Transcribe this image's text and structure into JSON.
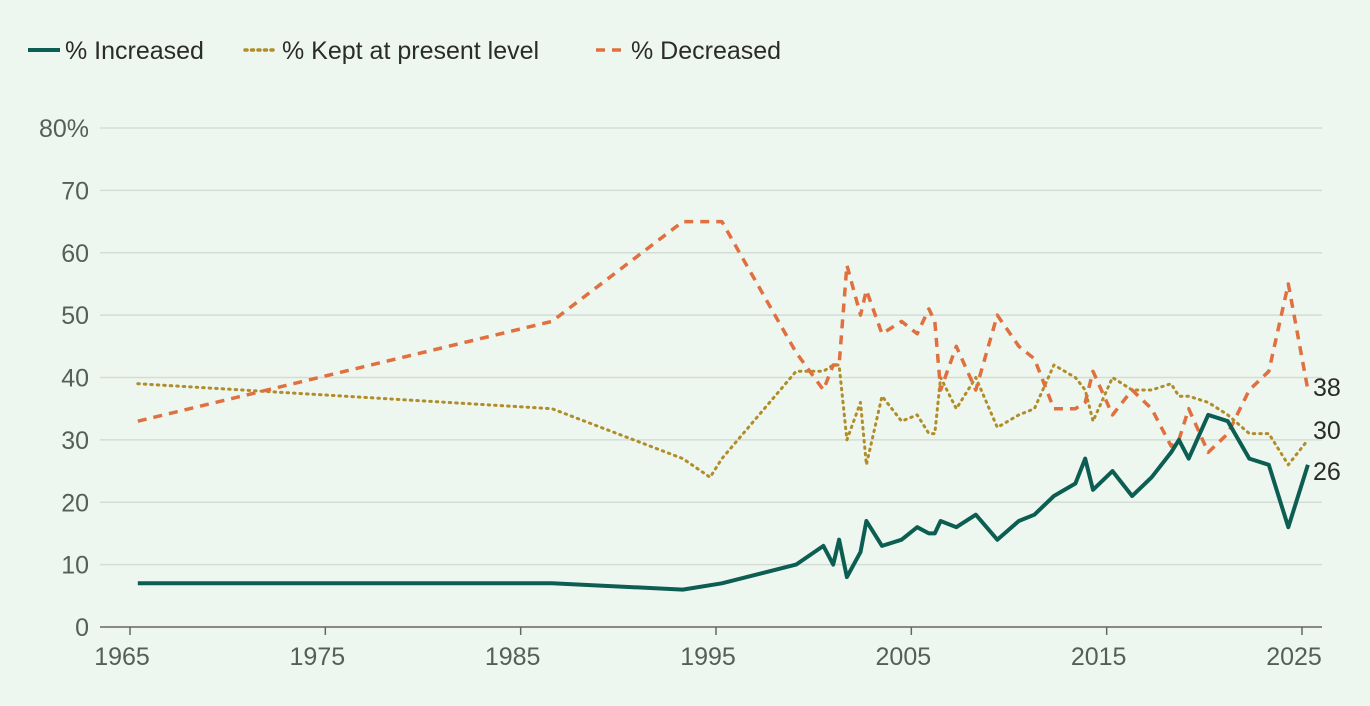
{
  "colors": {
    "background": "#eef7ef",
    "increased": "#0c5e52",
    "kept": "#b08d2a",
    "decreased": "#e0703f"
  },
  "chart_data": {
    "type": "line",
    "title": "",
    "xlabel": "",
    "ylabel": "",
    "xlim": [
      1965,
      2025
    ],
    "ylim": [
      0,
      80
    ],
    "yticks": [
      0,
      10,
      20,
      30,
      40,
      50,
      60,
      70,
      80
    ],
    "ytick_labels": [
      "0",
      "10",
      "20",
      "30",
      "40",
      "50",
      "60",
      "70",
      "80%"
    ],
    "xticks": [
      1965,
      1975,
      1985,
      1995,
      2005,
      2015,
      2025
    ],
    "xtick_labels": [
      "1965",
      "1975",
      "1985",
      "1995",
      "2005",
      "2015",
      "2025"
    ],
    "grid": true,
    "legend_position": "top-left",
    "series": [
      {
        "name": "% Increased",
        "key": "increased",
        "style": "solid",
        "end_label": "26",
        "points": [
          [
            1965.4,
            7
          ],
          [
            1986.6,
            7
          ],
          [
            1993.3,
            6
          ],
          [
            1995.3,
            7
          ],
          [
            1999.1,
            10
          ],
          [
            2000.5,
            13
          ],
          [
            2001.0,
            10
          ],
          [
            2001.3,
            14
          ],
          [
            2001.7,
            8
          ],
          [
            2002.4,
            12
          ],
          [
            2002.7,
            17
          ],
          [
            2003.5,
            13
          ],
          [
            2004.5,
            14
          ],
          [
            2005.3,
            16
          ],
          [
            2005.9,
            15
          ],
          [
            2006.2,
            15
          ],
          [
            2006.5,
            17
          ],
          [
            2007.3,
            16
          ],
          [
            2008.3,
            18
          ],
          [
            2009.4,
            14
          ],
          [
            2010.5,
            17
          ],
          [
            2011.3,
            18
          ],
          [
            2012.3,
            21
          ],
          [
            2013.4,
            23
          ],
          [
            2013.9,
            27
          ],
          [
            2014.3,
            22
          ],
          [
            2015.3,
            25
          ],
          [
            2016.3,
            21
          ],
          [
            2017.3,
            24
          ],
          [
            2018.3,
            28
          ],
          [
            2018.7,
            30
          ],
          [
            2019.2,
            27
          ],
          [
            2020.2,
            34
          ],
          [
            2021.2,
            33
          ],
          [
            2022.3,
            27
          ],
          [
            2023.3,
            26
          ],
          [
            2024.3,
            16
          ],
          [
            2025.3,
            26
          ]
        ]
      },
      {
        "name": "% Kept at present level",
        "key": "kept",
        "style": "dotted",
        "end_label": "30",
        "points": [
          [
            1965.4,
            39
          ],
          [
            1986.6,
            35
          ],
          [
            1993.3,
            27
          ],
          [
            1994.7,
            24
          ],
          [
            1995.3,
            27
          ],
          [
            1999.1,
            41
          ],
          [
            2000.5,
            41
          ],
          [
            2001.0,
            42
          ],
          [
            2001.3,
            42
          ],
          [
            2001.7,
            30
          ],
          [
            2002.4,
            36
          ],
          [
            2002.7,
            26
          ],
          [
            2003.5,
            37
          ],
          [
            2004.5,
            33
          ],
          [
            2005.3,
            34
          ],
          [
            2005.9,
            31
          ],
          [
            2006.2,
            31
          ],
          [
            2006.5,
            40
          ],
          [
            2007.3,
            35
          ],
          [
            2008.3,
            40
          ],
          [
            2009.4,
            32
          ],
          [
            2010.5,
            34
          ],
          [
            2011.3,
            35
          ],
          [
            2012.3,
            42
          ],
          [
            2013.4,
            40
          ],
          [
            2013.9,
            38
          ],
          [
            2014.3,
            33
          ],
          [
            2015.3,
            40
          ],
          [
            2016.3,
            38
          ],
          [
            2017.3,
            38
          ],
          [
            2018.3,
            39
          ],
          [
            2018.7,
            37
          ],
          [
            2019.2,
            37
          ],
          [
            2020.2,
            36
          ],
          [
            2021.2,
            34
          ],
          [
            2022.3,
            31
          ],
          [
            2023.3,
            31
          ],
          [
            2024.3,
            26
          ],
          [
            2025.3,
            30
          ]
        ]
      },
      {
        "name": "% Decreased",
        "key": "decreased",
        "style": "dashed",
        "end_label": "38",
        "points": [
          [
            1965.4,
            33
          ],
          [
            1986.6,
            49
          ],
          [
            1993.3,
            65
          ],
          [
            1995.3,
            65
          ],
          [
            1999.1,
            44
          ],
          [
            2000.5,
            38
          ],
          [
            2001.0,
            42
          ],
          [
            2001.3,
            42
          ],
          [
            2001.7,
            58
          ],
          [
            2002.4,
            50
          ],
          [
            2002.7,
            54
          ],
          [
            2003.5,
            47
          ],
          [
            2004.5,
            49
          ],
          [
            2005.3,
            47
          ],
          [
            2005.9,
            51
          ],
          [
            2006.2,
            49
          ],
          [
            2006.5,
            38
          ],
          [
            2007.3,
            45
          ],
          [
            2008.3,
            38
          ],
          [
            2009.4,
            50
          ],
          [
            2010.5,
            45
          ],
          [
            2011.3,
            43
          ],
          [
            2012.3,
            35
          ],
          [
            2013.4,
            35
          ],
          [
            2013.9,
            36
          ],
          [
            2014.3,
            41
          ],
          [
            2015.3,
            34
          ],
          [
            2016.3,
            38
          ],
          [
            2017.3,
            35
          ],
          [
            2018.3,
            29
          ],
          [
            2018.7,
            30
          ],
          [
            2019.2,
            35
          ],
          [
            2020.2,
            28
          ],
          [
            2021.2,
            31
          ],
          [
            2022.3,
            38
          ],
          [
            2023.3,
            41
          ],
          [
            2024.3,
            55
          ],
          [
            2025.3,
            38
          ]
        ]
      }
    ]
  }
}
